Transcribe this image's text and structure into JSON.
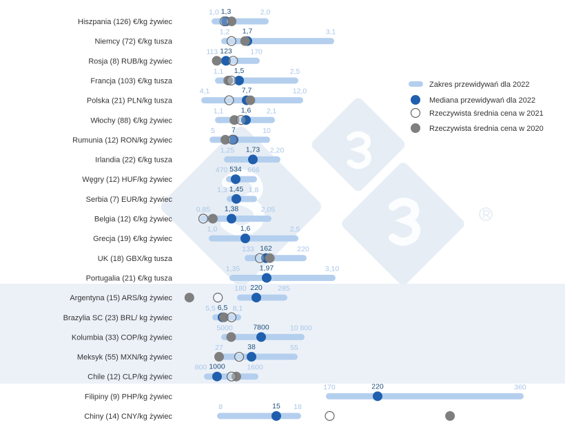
{
  "chart_data": {
    "type": "range-dot",
    "colors": {
      "range": "#b4cfee",
      "median": "#1f5fad",
      "actual_2021": "#ffffff",
      "actual_2020": "#7f7f7f",
      "minmax_label": "#a9c6e8",
      "median_label": "#1f4e79",
      "band": "#e9eff7"
    },
    "legend": {
      "placement": "right",
      "items": [
        {
          "key": "range",
          "label": "Zakres przewidywań dla 2022"
        },
        {
          "key": "median",
          "label": "Mediana przewidywań dla 2022"
        },
        {
          "key": "actual_2021",
          "label": "Rzeczywista średnia cena w 2021"
        },
        {
          "key": "actual_2020",
          "label": "Rzeczywista średnia cena w 2020"
        }
      ]
    },
    "rows": [
      {
        "label": "Hiszpania (126) €/kg żywiec",
        "min": 1.0,
        "min_label": "1,0",
        "median": 1.3,
        "median_label": "1,3",
        "max": 2.0,
        "max_label": "2,0",
        "actual_2021": 1.26,
        "actual_2020": 1.4
      },
      {
        "label": "Niemcy (72) €/kg tusza",
        "min": 1.2,
        "min_label": "1,2",
        "median": 1.7,
        "median_label": "1,7",
        "max": 3.1,
        "max_label": "3,1",
        "actual_2021": 1.35,
        "actual_2020": 1.65
      },
      {
        "label": "Rosja (8) RUB/kg żywiec",
        "min": 113,
        "min_label": "113",
        "median": 123,
        "median_label": "123",
        "max": 170,
        "max_label": "170",
        "actual_2021": 134,
        "actual_2020": 114
      },
      {
        "label": "Francja (103) €/kg tusza",
        "min": 1.1,
        "min_label": "1,1",
        "median": 1.5,
        "median_label": "1,5",
        "max": 2.5,
        "max_label": "2,5",
        "actual_2021": 1.35,
        "actual_2020": 1.29
      },
      {
        "label": "Polska (21) PLN/kg tusza",
        "min": 4.1,
        "min_label": "4,1",
        "median": 7.7,
        "median_label": "7,7",
        "max": 12.0,
        "max_label": "12,0",
        "actual_2021": 6.2,
        "actual_2020": 8.0
      },
      {
        "label": "Włochy (88) €/kg żywiec",
        "min": 1.1,
        "min_label": "1,1",
        "median": 1.6,
        "median_label": "1,6",
        "max": 2.1,
        "max_label": "2,1",
        "actual_2021": 1.51,
        "actual_2020": 1.39
      },
      {
        "label": "Rumunia (12) RON/kg żywiec",
        "min": 5,
        "min_label": "5",
        "median": 7,
        "median_label": "7",
        "max": 10,
        "max_label": "10",
        "actual_2021": 6.9,
        "actual_2020": 6.2
      },
      {
        "label": "Irlandia (22) €/kg tusza",
        "min": 1.25,
        "min_label": "1,25",
        "median": 1.73,
        "median_label": "1,73",
        "max": 2.2,
        "max_label": "2,20",
        "actual_2021": null,
        "actual_2020": null
      },
      {
        "label": "Węgry (12) HUF/kg żywiec",
        "min": 470,
        "min_label": "470",
        "median": 534,
        "median_label": "534",
        "max": 666,
        "max_label": "666",
        "actual_2021": null,
        "actual_2020": null
      },
      {
        "label": "Serbia (7) EUR/kg żywiec",
        "min": 1.3,
        "min_label": "1,3",
        "median": 1.45,
        "median_label": "1,45",
        "max": 1.8,
        "max_label": "1,8",
        "actual_2021": null,
        "actual_2020": null
      },
      {
        "label": "Belgia (12) €/kg żywiec",
        "min": 0.85,
        "min_label": "0,85",
        "median": 1.38,
        "median_label": "1,38",
        "max": 2.05,
        "max_label": "2,05",
        "actual_2021": 0.85,
        "actual_2020": 1.03
      },
      {
        "label": "Grecja (19) €/kg żywiec",
        "min": 1.0,
        "min_label": "1,0",
        "median": 1.6,
        "median_label": "1,6",
        "max": 2.5,
        "max_label": "2,5",
        "actual_2021": null,
        "actual_2020": null
      },
      {
        "label": "UK (18) GBX/kg tusza",
        "min": 133,
        "min_label": "133",
        "median": 162,
        "median_label": "162",
        "max": 220,
        "max_label": "220",
        "actual_2021": 152,
        "actual_2020": 168
      },
      {
        "label": "Portugalia (21) €/kg tusza",
        "min": 1.35,
        "min_label": "1,35",
        "median": 1.97,
        "median_label": "1,97",
        "max": 3.1,
        "max_label": "3,10",
        "actual_2021": null,
        "actual_2020": null
      },
      {
        "label": "Argentyna (15) ARS/kg żywiec",
        "min": 180,
        "min_label": "180",
        "median": 220,
        "median_label": "220",
        "max": 285,
        "max_label": "285",
        "actual_2021": 123,
        "actual_2020": 51
      },
      {
        "label": "Brazylia SC (23) BRL/ kg żywiec",
        "min": 5.5,
        "min_label": "5,5",
        "median": 6.5,
        "median_label": "6,5",
        "max": 8.1,
        "max_label": "8,1",
        "actual_2021": 7.45,
        "actual_2020": 6.65
      },
      {
        "label": "Kolumbia (33) COP/kg żywiec",
        "min": 5000,
        "min_label": "5000",
        "median": 7800,
        "median_label": "7800",
        "max": 10800,
        "max_label": "10 800",
        "actual_2021": null,
        "actual_2020": 5500
      },
      {
        "label": "Meksyk (55) MXN/kg żywiec",
        "min": 27,
        "min_label": "27",
        "median": 38,
        "median_label": "38",
        "max": 55,
        "max_label": "55",
        "actual_2021": 33.8,
        "actual_2020": 27
      },
      {
        "label": "Chile (12) CLP/kg żywiec",
        "min": 800,
        "min_label": "800",
        "median": 1000,
        "median_label": "1000",
        "max": 1600,
        "max_label": "1600",
        "actual_2021": 1229,
        "actual_2020": 1305
      },
      {
        "label": "Filipiny (9) PHP/kg żywiec",
        "min": 170,
        "min_label": "170",
        "median": 220,
        "median_label": "220",
        "max": 360,
        "max_label": "360",
        "actual_2021": null,
        "actual_2020": null
      },
      {
        "label": "Chiny (14) CNY/kg żywiec",
        "min": 8,
        "min_label": "8",
        "median": 15,
        "median_label": "15",
        "max": 18,
        "max_label": "18",
        "actual_2021": 22.5,
        "actual_2020": 39.4
      }
    ]
  }
}
